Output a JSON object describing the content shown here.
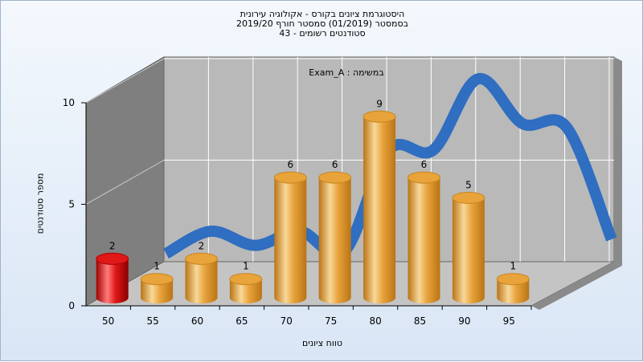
{
  "chart_data": {
    "type": "bar",
    "title_lines": [
      "היסטוגרמת ציונים בקורס - אקולוגיה עירונית",
      "בסמסטר  (01/2019)  סמסטר חורף 2019/20",
      "סטודנטים רשומים - 43"
    ],
    "subtitle": "Exam_A : במשימה",
    "xlabel": "טווח ציונים",
    "ylabel": "מספר סטודנטים",
    "categories": [
      "50",
      "55",
      "60",
      "65",
      "70",
      "75",
      "80",
      "85",
      "90",
      "95"
    ],
    "values": [
      2,
      1,
      2,
      1,
      6,
      6,
      9,
      6,
      5,
      1
    ],
    "highlight_index": 0,
    "y_ticks": [
      "0",
      "5",
      "10"
    ],
    "ylim": [
      0,
      10
    ],
    "curve": {
      "type": "smoothed distribution line",
      "x": [
        50,
        55,
        60,
        65,
        70,
        75,
        80,
        85,
        90,
        95,
        100
      ],
      "y": [
        0.4,
        1.5,
        0.8,
        1.5,
        0.5,
        5.5,
        5.5,
        9.0,
        6.8,
        6.6,
        1.1
      ]
    },
    "colors": {
      "bar": "#e8a33b",
      "bar_light": "#f8d89a",
      "bar_dark": "#b97415",
      "highlight": "#e01818",
      "highlight_light": "#ff7b7b",
      "curve": "#2f6ec0",
      "wall": "#b9b9b9",
      "left_wall": "#7f7f7f",
      "floor": "#c4c4c4",
      "grid": "#ffffff"
    }
  }
}
